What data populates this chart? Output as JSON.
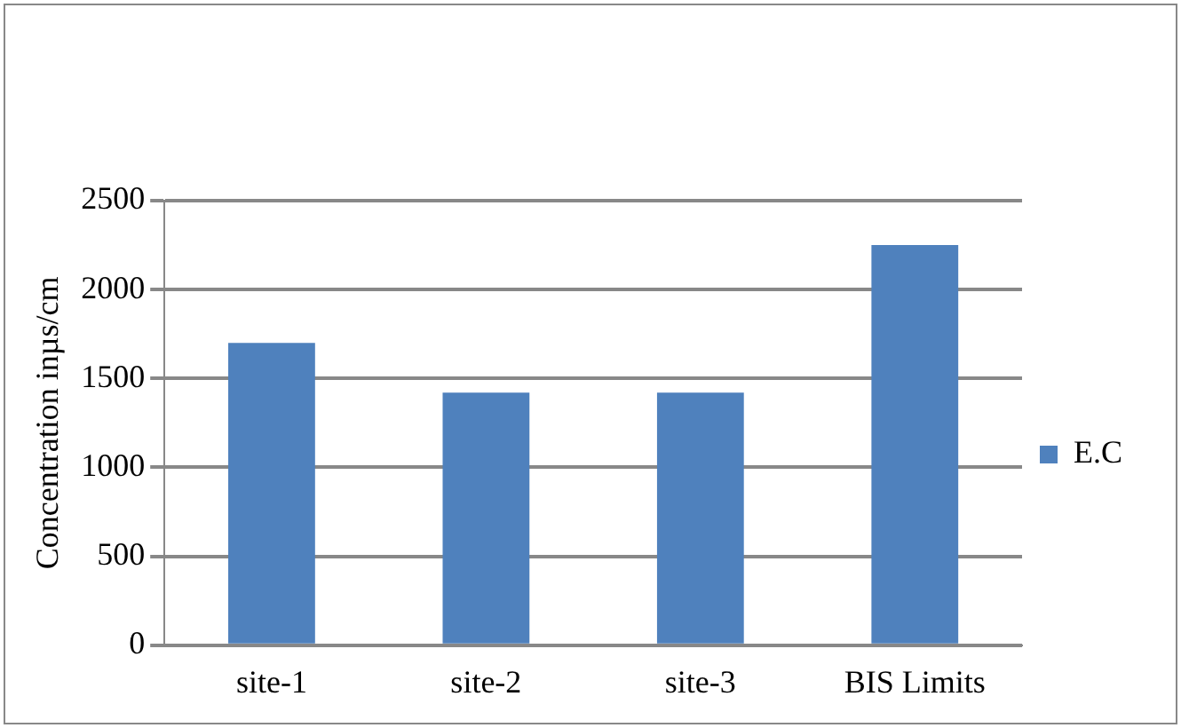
{
  "chart_data": {
    "type": "bar",
    "ylabel": "Concentration inµs/cm",
    "categories": [
      "site-1",
      "site-2",
      "site-3",
      "BIS Limits"
    ],
    "series": [
      {
        "name": "E.C",
        "color": "#4f81bd",
        "values": [
          1700,
          1420,
          1420,
          2250
        ]
      }
    ],
    "ylim": [
      0,
      2500
    ],
    "yticks": [
      0,
      500,
      1000,
      1500,
      2000,
      2500
    ],
    "grid": "y",
    "legend": "right"
  }
}
